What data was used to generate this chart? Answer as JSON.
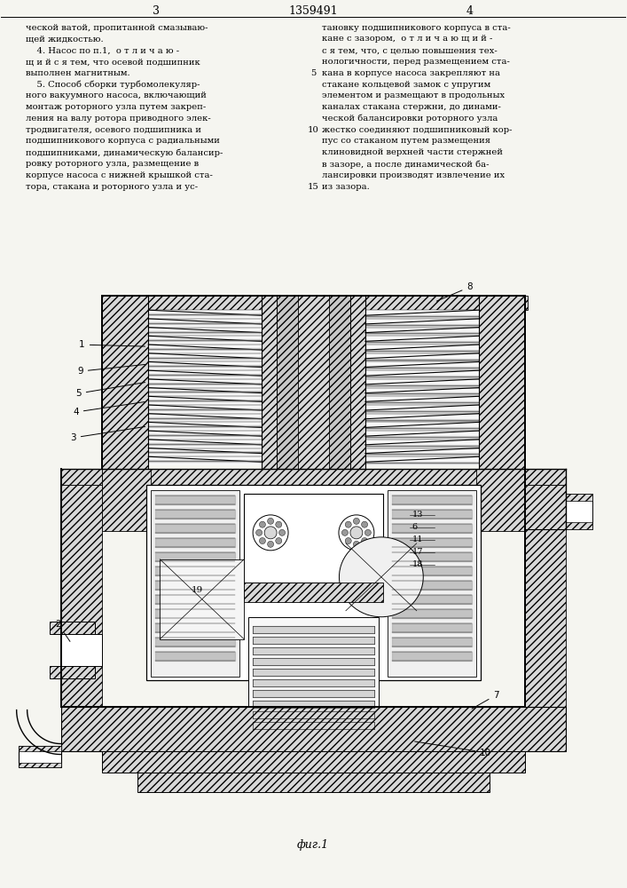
{
  "bg_color": "#f5f5f0",
  "page_num_left": "3",
  "page_num_center": "1359491",
  "page_num_right": "4",
  "left_col_lines": [
    "ческой ватой, пропитанной смазываю-",
    "щей жидкостью.",
    "    4. Насос по п.1,  о т л и ч а ю -",
    "щ и й с я тем, что осевой подшипник",
    "выполнен магнитным.",
    "    5. Способ сборки турбомолекуляр-",
    "ного вакуумного насоса, включающий",
    "монтаж роторного узла путем закреп-",
    "ления на валу ротора приводного элек-",
    "тродвигателя, осевого подшипника и",
    "подшипникового корпуса с радиальными",
    "подшипниками, динамическую балансир-",
    "ровку роторного узла, размещение в",
    "корпусе насоса с нижней крышкой ста-",
    "тора, стакана и роторного узла и ус-"
  ],
  "right_col_lines": [
    "тановку подшипникового корпуса в ста-",
    "кане с зазором,  о т л и ч а ю щ и й -",
    "с я тем, что, с целью повышения тех-",
    "нологичности, перед размещением ста-",
    "кана в корпусе насоса закрепляют на",
    "стакане кольцевой замок с упругим",
    "элементом и размещают в продольных",
    "каналах стакана стержни, до динами-",
    "ческой балансировки роторного узла",
    "жестко соединяют подшипниковый кор-",
    "пус со стаканом путем размещения",
    "клиновидной верхней части стержней",
    "в зазоре, а после динамической ба-",
    "лансировки производят извлечение их",
    "из зазора."
  ],
  "line_marks": [
    4,
    9,
    14
  ],
  "line_mark_labels": [
    "5",
    "10",
    "15"
  ],
  "figure_caption": "фиг.1"
}
